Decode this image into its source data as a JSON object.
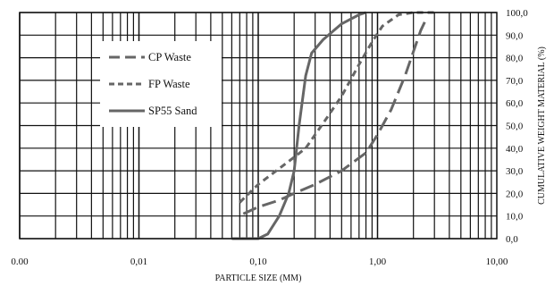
{
  "chart_data": {
    "type": "line",
    "title": "",
    "xlabel": "Particle Size (mm)",
    "ylabel": "Cumulative Weight Material (%)",
    "xscale": "log",
    "xlim": [
      0.001,
      10
    ],
    "ylim": [
      0,
      100
    ],
    "x_ticks": [
      "0.00",
      "0,01",
      "0,10",
      "1,00",
      "10,00"
    ],
    "y_ticks": [
      "0,0",
      "10,0",
      "20,0",
      "30,0",
      "40,0",
      "50,0",
      "60,0",
      "70,0",
      "80,0",
      "90,0",
      "100,0"
    ],
    "grid": true,
    "legend_position": "upper-left",
    "series": [
      {
        "name": "CP Waste",
        "style": "dashed",
        "color": "#666666",
        "x": [
          0.075,
          0.1,
          0.15,
          0.2,
          0.3,
          0.5,
          0.8,
          1.0,
          1.3,
          1.7,
          2.3,
          2.5
        ],
        "y": [
          11,
          14,
          17,
          20,
          24,
          30,
          38,
          46,
          57,
          72,
          92,
          96
        ]
      },
      {
        "name": "FP Waste",
        "style": "short-dashed",
        "color": "#666666",
        "x": [
          0.07,
          0.1,
          0.15,
          0.2,
          0.25,
          0.35,
          0.5,
          0.7,
          0.9,
          1.1,
          1.5,
          2.0,
          3.0
        ],
        "y": [
          16,
          24,
          31,
          36,
          40,
          51,
          63,
          77,
          87,
          94,
          99,
          100,
          100
        ]
      },
      {
        "name": "SP55 Sand",
        "style": "solid",
        "color": "#666666",
        "x": [
          0.06,
          0.1,
          0.12,
          0.15,
          0.18,
          0.2,
          0.22,
          0.25,
          0.28,
          0.35,
          0.5,
          0.7,
          0.8
        ],
        "y": [
          0,
          0,
          2,
          10,
          20,
          30,
          50,
          72,
          82,
          88,
          95,
          99,
          100
        ]
      }
    ]
  }
}
